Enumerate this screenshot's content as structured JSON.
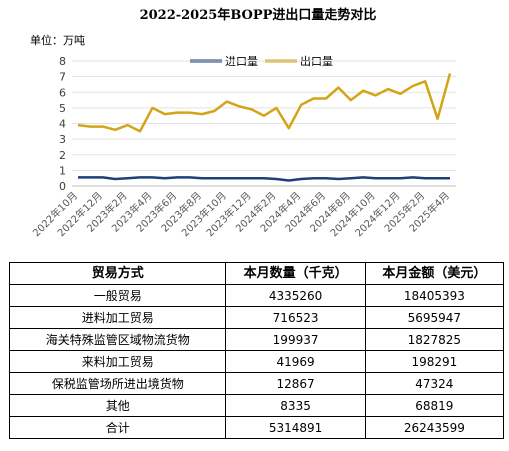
{
  "chart_data": {
    "type": "line",
    "title": "2022-2025年BOPP进出口量走势对比",
    "unit_label": "单位：万吨",
    "ylim": [
      0,
      8
    ],
    "yticks": [
      "0",
      "1",
      "2",
      "3",
      "4",
      "5",
      "6",
      "7",
      "8"
    ],
    "x_tick_labels": [
      "2022年10月",
      "2022年12月",
      "2023年2月",
      "2023年4月",
      "2023年6月",
      "2023年8月",
      "2023年10月",
      "2023年12月",
      "2024年2月",
      "2024年4月",
      "2024年6月",
      "2024年8月",
      "2024年10月",
      "2024年12月",
      "2025年2月",
      "2025年4月"
    ],
    "grid": true,
    "legend_position": "top",
    "series": [
      {
        "name": "进口量",
        "color": "#1f3f7a",
        "values": [
          0.55,
          0.55,
          0.55,
          0.45,
          0.5,
          0.55,
          0.55,
          0.5,
          0.55,
          0.55,
          0.5,
          0.5,
          0.5,
          0.5,
          0.5,
          0.5,
          0.45,
          0.35,
          0.45,
          0.5,
          0.5,
          0.45,
          0.5,
          0.55,
          0.5,
          0.5,
          0.5,
          0.55,
          0.5,
          0.5,
          0.5
        ]
      },
      {
        "name": "出口量",
        "color": "#d4a418",
        "values": [
          3.9,
          3.8,
          3.8,
          3.6,
          3.9,
          3.5,
          5.0,
          4.6,
          4.7,
          4.7,
          4.6,
          4.8,
          5.4,
          5.1,
          4.9,
          4.5,
          5.0,
          3.7,
          5.2,
          5.6,
          5.6,
          6.3,
          5.5,
          6.1,
          5.8,
          6.2,
          5.9,
          6.4,
          6.7,
          4.3,
          7.2
        ]
      }
    ]
  },
  "table": {
    "headers": [
      "贸易方式",
      "本月数量（千克）",
      "本月金额（美元）"
    ],
    "rows": [
      [
        "一般贸易",
        "4335260",
        "18405393"
      ],
      [
        "进料加工贸易",
        "716523",
        "5695947"
      ],
      [
        "海关特殊监管区域物流货物",
        "199937",
        "1827825"
      ],
      [
        "来料加工贸易",
        "41969",
        "198291"
      ],
      [
        "保税监管场所进出境货物",
        "12867",
        "47324"
      ],
      [
        "其他",
        "8335",
        "68819"
      ],
      [
        "合计",
        "5314891",
        "26243599"
      ]
    ]
  }
}
